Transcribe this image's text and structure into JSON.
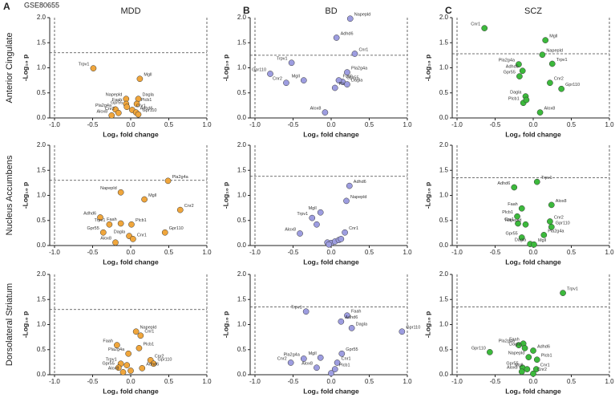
{
  "chart_data": {
    "type": "scatter",
    "dataset": "GSE80655",
    "panel_labels": [
      "A",
      "B",
      "C"
    ],
    "columns": [
      "MDD",
      "BD",
      "SCZ"
    ],
    "rows": [
      "Anterior Cingulate",
      "Nucleus Accumbens",
      "Dorsolateral Striatum"
    ],
    "xlabel": "Log₂ fold change",
    "ylabel": "-Log₁₀ p",
    "xlim": [
      -1.0,
      1.0
    ],
    "ylim": [
      0.0,
      2.0
    ],
    "xticks": [
      {
        "value": -1.0,
        "label": "-1.0"
      },
      {
        "value": -0.5,
        "label": "-0.5"
      },
      {
        "value": 0.0,
        "label": "0.0"
      },
      {
        "value": 0.5,
        "label": "0.5"
      },
      {
        "value": 1.0,
        "label": "1.0"
      }
    ],
    "yticks": [
      {
        "value": 0.0,
        "label": "0.0"
      },
      {
        "value": 0.5,
        "label": "0.5"
      },
      {
        "value": 1.0,
        "label": "1.0"
      },
      {
        "value": 1.5,
        "label": "1.5"
      },
      {
        "value": 2.0,
        "label": "2.0"
      }
    ],
    "panels": [
      {
        "color": "#f0a63c",
        "threshold": 1.3,
        "labels": [
          "Trpv1",
          "Mgll",
          "Dagla",
          "Napepld",
          "Faah",
          "Gpr55",
          "Plcb1",
          "Cnr1",
          "Adhd6",
          "Gpr110",
          "Pla2g4a",
          "Cnr2",
          "Alox8"
        ],
        "x": [
          -0.49,
          0.12,
          0.1,
          -0.06,
          -0.06,
          -0.05,
          0.08,
          0.02,
          0.07,
          0.1,
          -0.2,
          -0.16,
          -0.25
        ],
        "y": [
          0.99,
          0.78,
          0.38,
          0.38,
          0.28,
          0.22,
          0.28,
          0.16,
          0.11,
          0.07,
          0.17,
          0.1,
          0.05
        ]
      },
      {
        "color": "#9d9de0",
        "threshold": 1.25,
        "labels": [
          "Napepld",
          "Adhd6",
          "Cnr1",
          "Gpr110",
          "Trpv1",
          "Cnr2",
          "Pla2g4a",
          "Mgll",
          "Gpr55",
          "Faah",
          "Plcb1",
          "Dagla",
          "Alox8"
        ],
        "x": [
          0.25,
          0.07,
          0.31,
          -0.8,
          -0.52,
          -0.59,
          0.21,
          -0.36,
          0.15,
          0.1,
          0.05,
          0.21,
          -0.08
        ],
        "y": [
          1.98,
          1.6,
          1.28,
          0.88,
          1.1,
          0.7,
          0.91,
          0.75,
          0.72,
          0.75,
          0.6,
          0.67,
          0.11
        ]
      },
      {
        "color": "#3cb93c",
        "threshold": 1.28,
        "labels": [
          "Cnr1",
          "Mgll",
          "Napepld",
          "Trpv1",
          "Pla2g4a",
          "Adhd6",
          "Gpr55",
          "Cnr2",
          "Gpr110",
          "Dagla",
          "Plcb1",
          null,
          "Alox8"
        ],
        "x": [
          -0.64,
          0.16,
          0.12,
          0.25,
          -0.19,
          -0.14,
          -0.18,
          0.22,
          0.37,
          -0.1,
          -0.13,
          -0.09,
          0.09
        ],
        "y": [
          1.79,
          1.55,
          1.26,
          1.08,
          1.07,
          0.94,
          0.83,
          0.7,
          0.58,
          0.43,
          0.3,
          0.36,
          0.11
        ]
      },
      {
        "color": "#f0a63c",
        "threshold": 1.3,
        "labels": [
          "Pla2g4a",
          "Napepld",
          "Mgll",
          "Cnr2",
          "Adhd6",
          "Gpr110",
          "Trpv1",
          "Faah",
          "Plcb1",
          "Gpr55",
          "Dagla",
          "Cnr1",
          "Alox8"
        ],
        "x": [
          0.49,
          -0.13,
          0.18,
          0.65,
          -0.4,
          0.45,
          -0.28,
          -0.13,
          0.01,
          -0.36,
          -0.02,
          0.03,
          -0.2
        ],
        "y": [
          1.29,
          1.06,
          0.92,
          0.71,
          0.56,
          0.26,
          0.42,
          0.44,
          0.42,
          0.26,
          0.19,
          0.13,
          0.06
        ]
      },
      {
        "color": "#9d9de0",
        "threshold": 1.38,
        "labels": [
          "Adhd6",
          "Napepld",
          "Mgll",
          "Trpv1",
          "Alox8",
          "Cnr1",
          null,
          null,
          null,
          null,
          null,
          null,
          null
        ],
        "x": [
          0.24,
          0.2,
          -0.14,
          -0.25,
          -0.41,
          0.18,
          -0.19,
          -0.05,
          0.0,
          0.05,
          0.1,
          0.13,
          -0.03
        ],
        "y": [
          1.19,
          0.89,
          0.66,
          0.55,
          0.24,
          0.26,
          0.42,
          0.06,
          0.05,
          0.08,
          0.11,
          0.13,
          0.02
        ]
      },
      {
        "color": "#3cb93c",
        "threshold": 1.35,
        "labels": [
          "Trpv1",
          "Adhd6",
          "Alox8",
          "Faah",
          "Plcb1",
          "Cnr2",
          "Cnr1",
          "Napepld",
          "Gpr110",
          "Pla2g4a",
          "Gpr55",
          "Dagla",
          "Mgll"
        ],
        "x": [
          0.05,
          -0.25,
          0.24,
          -0.15,
          -0.21,
          0.22,
          -0.2,
          -0.1,
          0.24,
          0.14,
          -0.15,
          -0.04,
          0.01
        ],
        "y": [
          1.27,
          1.16,
          0.81,
          0.74,
          0.58,
          0.48,
          0.44,
          0.42,
          0.37,
          0.21,
          0.16,
          0.03,
          0.02
        ]
      },
      {
        "color": "#f0a63c",
        "threshold": 1.3,
        "labels": [
          "Napepld",
          "Cnr1",
          "Faah",
          "Plcb1",
          "Pla2g4a",
          "Cnr2",
          "Gpr110",
          "Trpv1",
          "Gpr55",
          "Adhd6",
          "Alox8",
          null,
          null
        ],
        "x": [
          0.07,
          0.13,
          -0.18,
          0.11,
          -0.03,
          0.26,
          0.3,
          -0.13,
          -0.16,
          0.15,
          -0.1,
          -0.05,
          0.0
        ],
        "y": [
          0.86,
          0.78,
          0.59,
          0.53,
          0.42,
          0.29,
          0.22,
          0.22,
          0.14,
          0.13,
          0.05,
          0.19,
          0.08
        ]
      },
      {
        "color": "#9d9de0",
        "threshold": 1.35,
        "labels": [
          "Trpv1",
          "Faah",
          "Adhd6",
          "Dagla",
          "Gpr110",
          "Gpr55",
          "Pla2g4a",
          "Mgll",
          "Cnr2",
          "Cnr1",
          "Alox8",
          "Plcb1",
          null
        ],
        "x": [
          -0.33,
          0.21,
          0.13,
          0.27,
          0.93,
          0.14,
          -0.36,
          -0.14,
          -0.53,
          0.08,
          -0.19,
          0.05,
          0.0
        ],
        "y": [
          1.26,
          1.18,
          1.06,
          0.93,
          0.86,
          0.42,
          0.32,
          0.34,
          0.24,
          0.24,
          0.14,
          0.11,
          0.03
        ]
      },
      {
        "color": "#3cb93c",
        "threshold": 1.35,
        "labels": [
          "Trpv1",
          "Faah",
          "Pla2g4a",
          "Adhd6",
          "Dagla",
          "Gpr110",
          "Napepld",
          "Plcb1",
          "Gpr55",
          "Mgll",
          "Cnr1",
          "Alox8",
          "Cnr2"
        ],
        "x": [
          0.39,
          -0.13,
          -0.19,
          0.0,
          -0.11,
          -0.57,
          -0.06,
          0.05,
          -0.14,
          -0.08,
          0.04,
          -0.15,
          0.0
        ],
        "y": [
          1.63,
          0.62,
          0.59,
          0.48,
          0.53,
          0.45,
          0.35,
          0.3,
          0.14,
          0.11,
          0.11,
          0.06,
          0.02
        ]
      }
    ]
  }
}
